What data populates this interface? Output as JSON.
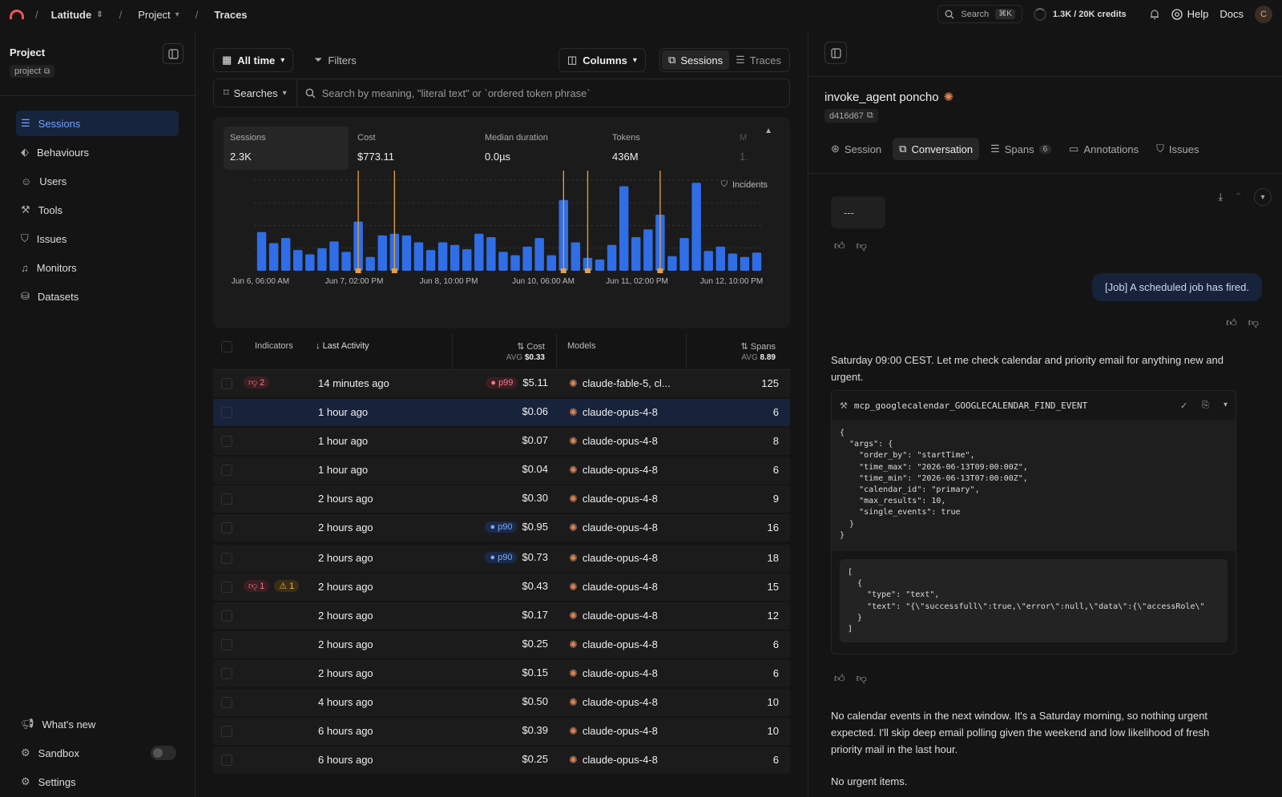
{
  "topbar": {
    "org": "Latitude",
    "project": "Project",
    "page": "Traces",
    "search_label": "Search",
    "search_shortcut": "⌘K",
    "credits": "1.3K / 20K credits",
    "help": "Help",
    "docs": "Docs",
    "avatar_initial": "C"
  },
  "sidebar": {
    "project_title": "Project",
    "project_tag": "project",
    "items": [
      {
        "label": "Sessions"
      },
      {
        "label": "Behaviours"
      },
      {
        "label": "Users"
      },
      {
        "label": "Tools"
      },
      {
        "label": "Issues"
      },
      {
        "label": "Monitors"
      },
      {
        "label": "Datasets"
      }
    ],
    "bottom": [
      {
        "label": "What's new"
      },
      {
        "label": "Sandbox"
      },
      {
        "label": "Settings"
      }
    ]
  },
  "toolbar": {
    "time_range": "All time",
    "filters": "Filters",
    "columns": "Columns",
    "view_sessions": "Sessions",
    "view_traces": "Traces",
    "searches": "Searches",
    "search_placeholder": "Search by meaning, \"literal text\" or `ordered token phrase`"
  },
  "stats": [
    {
      "label": "Sessions",
      "value": "2.3K"
    },
    {
      "label": "Cost",
      "value": "$773.11"
    },
    {
      "label": "Median duration",
      "value": "0.0µs"
    },
    {
      "label": "Tokens",
      "value": "436M"
    },
    {
      "label": "M",
      "value": "1."
    }
  ],
  "incidents_label": "Incidents",
  "chart_data": {
    "type": "bar",
    "x_tick_labels": [
      "Jun 6, 06:00 AM",
      "Jun 7, 02:00 PM",
      "Jun 8, 10:00 PM",
      "Jun 10, 06:00 AM",
      "Jun 11, 02:00 PM",
      "Jun 12, 10:00 PM"
    ],
    "values": [
      45,
      32,
      38,
      24,
      19,
      26,
      34,
      22,
      57,
      16,
      41,
      43,
      41,
      33,
      24,
      33,
      30,
      25,
      43,
      39,
      22,
      18,
      28,
      38,
      18,
      82,
      33,
      15,
      13,
      30,
      98,
      39,
      48,
      65,
      17,
      38,
      102,
      23,
      28,
      20,
      16,
      21
    ],
    "incidents_at_index": [
      8,
      11,
      25,
      27,
      33
    ],
    "colors": {
      "bar": "#2f6ee6",
      "incident": "#e8a23b"
    }
  },
  "table": {
    "headers": {
      "indicators": "Indicators",
      "last_activity": "Last Activity",
      "cost": "Cost",
      "cost_avg_label": "AVG",
      "cost_avg": "$0.33",
      "models": "Models",
      "spans": "Spans",
      "spans_avg_label": "AVG",
      "spans_avg": "8.89"
    },
    "rows": [
      {
        "ind": [
          {
            "type": "thumbs-down",
            "n": "2"
          }
        ],
        "time": "14 minutes ago",
        "pct": "p99",
        "cost": "$5.11",
        "model": "claude-fable-5, cl...",
        "spans": "125"
      },
      {
        "ind": [],
        "time": "1 hour ago",
        "pct": "",
        "cost": "$0.06",
        "model": "claude-opus-4-8",
        "spans": "6"
      },
      {
        "ind": [],
        "time": "1 hour ago",
        "pct": "",
        "cost": "$0.07",
        "model": "claude-opus-4-8",
        "spans": "8"
      },
      {
        "ind": [],
        "time": "1 hour ago",
        "pct": "",
        "cost": "$0.04",
        "model": "claude-opus-4-8",
        "spans": "6"
      },
      {
        "ind": [],
        "time": "2 hours ago",
        "pct": "",
        "cost": "$0.30",
        "model": "claude-opus-4-8",
        "spans": "9"
      },
      {
        "ind": [],
        "time": "2 hours ago",
        "pct": "p90",
        "cost": "$0.95",
        "model": "claude-opus-4-8",
        "spans": "16"
      },
      {
        "ind": [],
        "time": "2 hours ago",
        "pct": "p90",
        "cost": "$0.73",
        "model": "claude-opus-4-8",
        "spans": "18"
      },
      {
        "ind": [
          {
            "type": "thumbs-down",
            "n": "1"
          },
          {
            "type": "warning",
            "n": "1"
          }
        ],
        "time": "2 hours ago",
        "pct": "",
        "cost": "$0.43",
        "model": "claude-opus-4-8",
        "spans": "15"
      },
      {
        "ind": [],
        "time": "2 hours ago",
        "pct": "",
        "cost": "$0.17",
        "model": "claude-opus-4-8",
        "spans": "12"
      },
      {
        "ind": [],
        "time": "2 hours ago",
        "pct": "",
        "cost": "$0.25",
        "model": "claude-opus-4-8",
        "spans": "6"
      },
      {
        "ind": [],
        "time": "2 hours ago",
        "pct": "",
        "cost": "$0.15",
        "model": "claude-opus-4-8",
        "spans": "6"
      },
      {
        "ind": [],
        "time": "4 hours ago",
        "pct": "",
        "cost": "$0.50",
        "model": "claude-opus-4-8",
        "spans": "10"
      },
      {
        "ind": [],
        "time": "6 hours ago",
        "pct": "",
        "cost": "$0.39",
        "model": "claude-opus-4-8",
        "spans": "10"
      },
      {
        "ind": [],
        "time": "6 hours ago",
        "pct": "",
        "cost": "$0.25",
        "model": "claude-opus-4-8",
        "spans": "6"
      }
    ]
  },
  "detail": {
    "title": "invoke_agent poncho",
    "id": "d416d67",
    "tabs": [
      {
        "label": "Session"
      },
      {
        "label": "Conversation"
      },
      {
        "label": "Spans",
        "count": "6"
      },
      {
        "label": "Annotations"
      },
      {
        "label": "Issues"
      }
    ],
    "first_msg": "---",
    "user_msg": "[Job] A scheduled job has fired.",
    "assistant_msg": "Saturday 09:00 CEST. Let me check calendar and priority email for anything new and urgent.",
    "tool_name": "mcp_googlecalendar_GOOGLECALENDAR_FIND_EVENT",
    "tool_args": "{\n  \"args\": {\n    \"order_by\": \"startTime\",\n    \"time_max\": \"2026-06-13T09:00:00Z\",\n    \"time_min\": \"2026-06-13T07:00:00Z\",\n    \"calendar_id\": \"primary\",\n    \"max_results\": 10,\n    \"single_events\": true\n  }\n}",
    "tool_result": "[\n  {\n    \"type\": \"text\",\n    \"text\": \"{\\\"successfull\\\":true,\\\"error\\\":null,\\\"data\\\":{\\\"accessRole\\\"\n  }\n]",
    "final_msg": "No calendar events in the next window. It's a Saturday morning, so nothing urgent expected. I'll skip deep email polling given the weekend and low likelihood of fresh priority mail in the last hour.",
    "trailing_msg": "No urgent items."
  }
}
